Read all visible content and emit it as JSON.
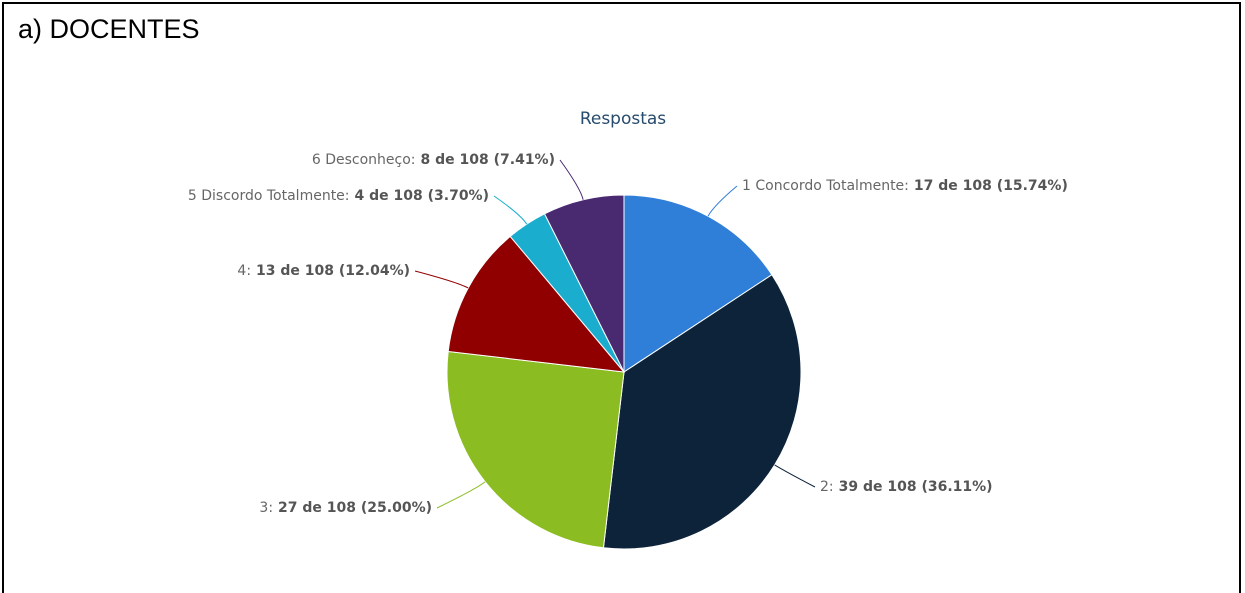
{
  "heading": "a) DOCENTES",
  "chart_data": {
    "type": "pie",
    "title": "Respostas",
    "categories": [
      "1 Concordo Totalmente:",
      "2:",
      "3:",
      "4:",
      "5 Discordo Totalmente:",
      "6 Desconheço:"
    ],
    "values": [
      17,
      39,
      27,
      13,
      4,
      8
    ],
    "value_labels": [
      "17 de 108 (15.74%)",
      "39 de 108 (36.11%)",
      "27 de 108 (25.00%)",
      "13 de 108 (12.04%)",
      "4 de 108 (3.70%)",
      "8 de 108 (7.41%)"
    ],
    "colors": [
      "#2f7ed8",
      "#0d233a",
      "#8bbc21",
      "#910000",
      "#1aadce",
      "#492970"
    ]
  }
}
